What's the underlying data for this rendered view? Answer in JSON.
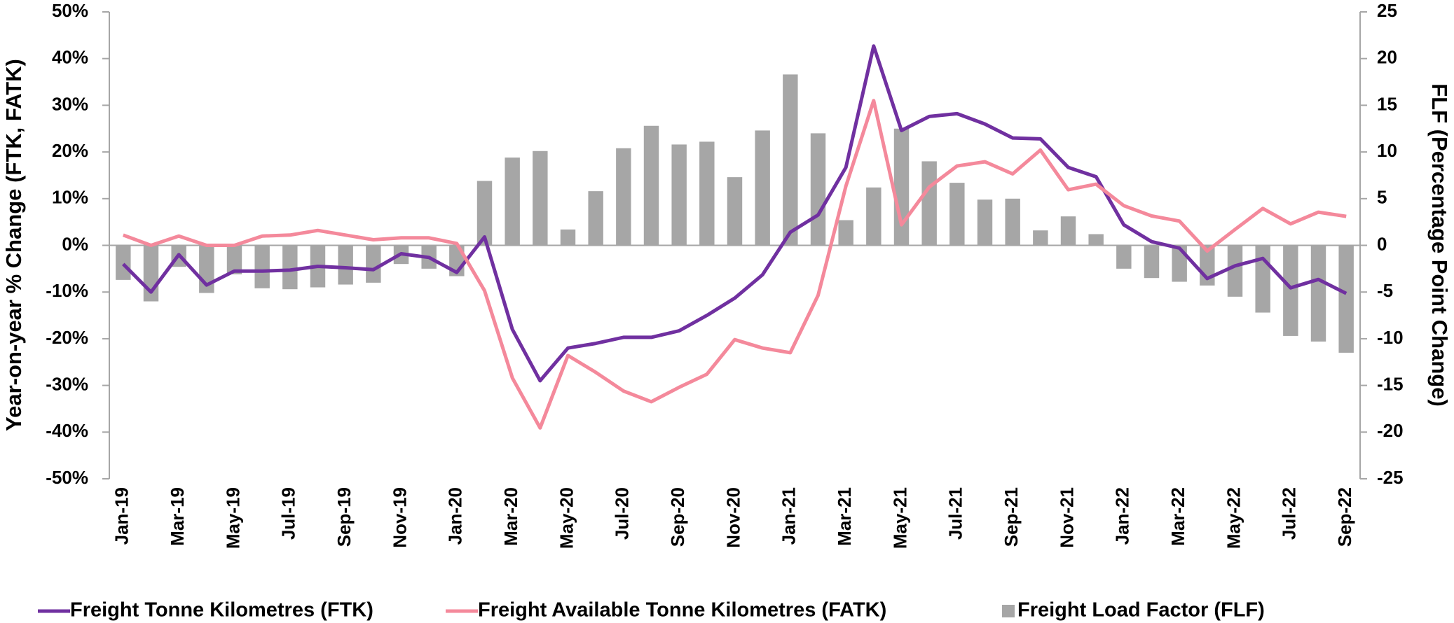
{
  "chart_data": {
    "type": "line",
    "y_label": "Year-on-year % Change (FTK, FATK)",
    "y2_label": "FLF (Percentage Point Change)",
    "categories": [
      "Jan-19",
      null,
      "Mar-19",
      null,
      "May-19",
      null,
      "Jul-19",
      null,
      "Sep-19",
      null,
      "Nov-19",
      null,
      "Jan-20",
      null,
      "Mar-20",
      null,
      "May-20",
      null,
      "Jul-20",
      null,
      "Sep-20",
      null,
      "Nov-20",
      null,
      "Jan-21",
      null,
      "Mar-21",
      null,
      "May-21",
      null,
      "Jul-21",
      null,
      "Sep-21",
      null,
      "Nov-21",
      null,
      "Jan-22",
      null,
      "Mar-22",
      null,
      "May-22",
      null,
      "Jul-22",
      null,
      "Sep-22"
    ],
    "series": [
      {
        "name": "Freight Tonne Kilometres (FTK)",
        "color": "#7030a0",
        "type": "line",
        "values": [
          -4,
          -10,
          -2,
          -8.5,
          -5.5,
          -5.5,
          -5.3,
          -4.5,
          -4.8,
          -5.2,
          -1.8,
          -2.6,
          -5.8,
          1.8,
          -18,
          -29,
          -22,
          -21,
          -19.7,
          -19.7,
          -18.3,
          -15,
          -11.3,
          -6.3,
          2.8,
          6.5,
          16.7,
          42.7,
          24.6,
          27.6,
          28.2,
          26,
          23,
          22.8,
          16.7,
          14.7,
          4.4,
          0.8,
          -0.6,
          -7.1,
          -4.4,
          -2.8,
          -9.1,
          -7.3,
          -10.3
        ]
      },
      {
        "name": "Freight Available Tonne Kilometres (FATK)",
        "color": "#f4899b",
        "type": "line",
        "values": [
          2.2,
          0,
          2,
          0,
          0,
          2,
          2.2,
          3.2,
          2.2,
          1.2,
          1.6,
          1.6,
          0.4,
          -9.7,
          -28.4,
          -39.1,
          -23.6,
          -27.2,
          -31.2,
          -33.5,
          -30.4,
          -27.6,
          -20.2,
          -22,
          -23,
          -10.7,
          12.7,
          31,
          4.4,
          12.5,
          17,
          17.9,
          15.3,
          20.4,
          11.9,
          13.1,
          8.5,
          6.3,
          5.2,
          -1.2,
          3.4,
          7.9,
          4.6,
          7.1,
          6.2
        ]
      },
      {
        "name": "Freight Load Factor (FLF)",
        "color": "#a6a6a6",
        "type": "bar",
        "axis": "y2",
        "values": [
          -3.7,
          -6,
          -2.3,
          -5.1,
          -3.1,
          -4.6,
          -4.7,
          -4.5,
          -4.2,
          -4,
          -2,
          -2.5,
          -3.3,
          6.9,
          9.4,
          10.1,
          1.7,
          5.8,
          10.4,
          12.8,
          10.8,
          11.1,
          7.3,
          12.3,
          18.3,
          12,
          2.7,
          6.2,
          12.5,
          9,
          6.7,
          4.9,
          5,
          1.6,
          3.1,
          1.2,
          -2.5,
          -3.5,
          -3.9,
          -4.3,
          -5.5,
          -7.2,
          -9.7,
          -10.3,
          -11.5
        ]
      }
    ],
    "ylim": [
      -50,
      50
    ],
    "yticks": [
      {
        "value": 50,
        "label": "50%"
      },
      {
        "value": 40,
        "label": "40%"
      },
      {
        "value": 30,
        "label": "30%"
      },
      {
        "value": 20,
        "label": "20%"
      },
      {
        "value": 10,
        "label": "10%"
      },
      {
        "value": 0,
        "label": "0%"
      },
      {
        "value": -10,
        "label": "-10%"
      },
      {
        "value": -20,
        "label": "-20%"
      },
      {
        "value": -30,
        "label": "-30%"
      },
      {
        "value": -40,
        "label": "-40%"
      },
      {
        "value": -50,
        "label": "-50%"
      }
    ],
    "y2lim": [
      -25,
      25
    ],
    "y2ticks": [
      25,
      20,
      15,
      10,
      5,
      0,
      -5,
      -10,
      -15,
      -20,
      -25
    ],
    "grid": false,
    "legend": "bottom"
  }
}
